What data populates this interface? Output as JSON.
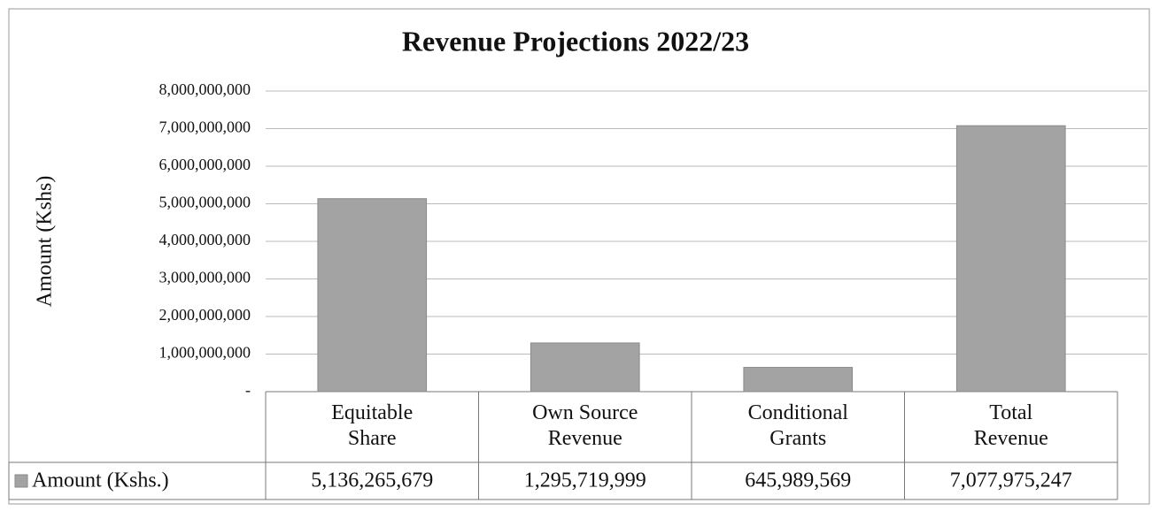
{
  "chart_data": {
    "type": "bar",
    "title": "Revenue Projections 2022/23",
    "y_label": "Amount (Kshs)",
    "categories": [
      "Equitable Share",
      "Own Source Revenue",
      "Conditional Grants",
      "Total Revenue"
    ],
    "series": [
      {
        "name": "Amount (Kshs.)",
        "color": "#a3a3a3",
        "values": [
          5136265679,
          1295719999,
          645989569,
          7077975247
        ],
        "value_labels": [
          "5,136,265,679",
          "1,295,719,999",
          "645,989,569",
          "7,077,975,247"
        ]
      }
    ],
    "ylim": [
      0,
      8000000000
    ],
    "yticks": [
      {
        "value": 0,
        "label": "-"
      },
      {
        "value": 1000000000,
        "label": "1,000,000,000"
      },
      {
        "value": 2000000000,
        "label": "2,000,000,000"
      },
      {
        "value": 3000000000,
        "label": "3,000,000,000"
      },
      {
        "value": 4000000000,
        "label": "4,000,000,000"
      },
      {
        "value": 5000000000,
        "label": "5,000,000,000"
      },
      {
        "value": 6000000000,
        "label": "6,000,000,000"
      },
      {
        "value": 7000000000,
        "label": "7,000,000,000"
      },
      {
        "value": 8000000000,
        "label": "8,000,000,000"
      }
    ],
    "grid": true,
    "legend": "bottom-left"
  }
}
